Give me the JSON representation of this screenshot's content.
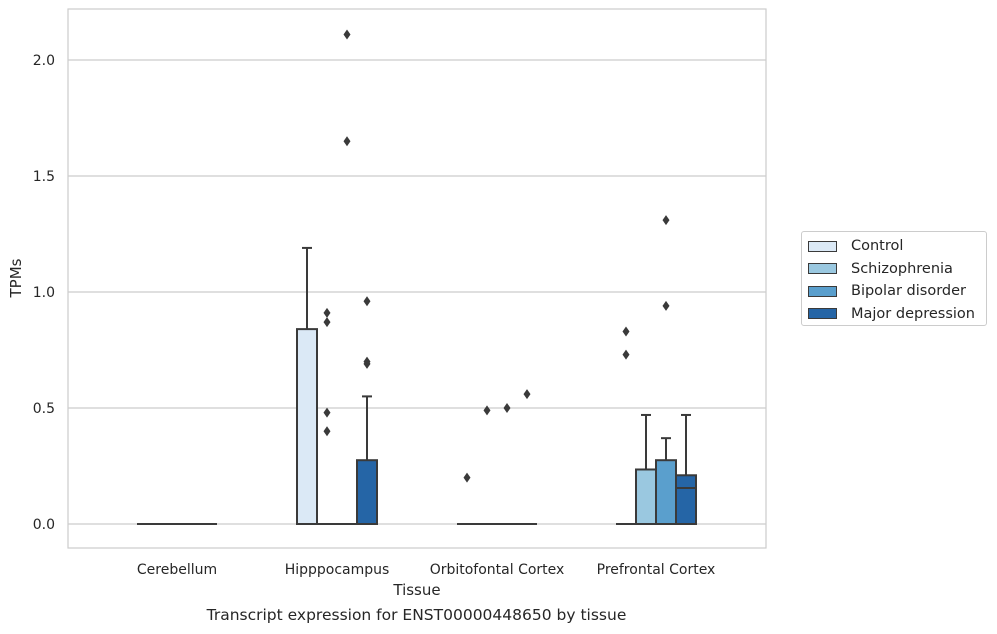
{
  "caption": "Transcript expression for ENST00000448650 by tissue",
  "chart_data": {
    "type": "box",
    "xlabel": "Tissue",
    "ylabel": "TPMs",
    "ylim": [
      -0.1,
      2.22
    ],
    "yticks": [
      "0.0",
      "0.5",
      "1.0",
      "1.5",
      "2.0"
    ],
    "grid": "horizontal",
    "legend_position": "right",
    "categories": [
      "Cerebellum",
      "Hipppocampus",
      "Orbitofontal Cortex",
      "Prefrontal Cortex"
    ],
    "series": [
      {
        "name": "Control",
        "color": "#dbe9f6",
        "boxes": [
          {
            "q1": 0,
            "median": 0,
            "q3": 0,
            "whisker_low": 0,
            "whisker_high": 0,
            "outliers": []
          },
          {
            "q1": 0,
            "median": 0,
            "q3": 0.84,
            "whisker_low": 0,
            "whisker_high": 1.19,
            "outliers": []
          },
          {
            "q1": 0,
            "median": 0,
            "q3": 0,
            "whisker_low": 0,
            "whisker_high": 0,
            "outliers": [
              0.2
            ]
          },
          {
            "q1": 0,
            "median": 0,
            "q3": 0,
            "whisker_low": 0,
            "whisker_high": 0,
            "outliers": [
              0.83,
              0.73
            ]
          }
        ]
      },
      {
        "name": "Schizophrenia",
        "color": "#9ac8e0",
        "boxes": [
          {
            "q1": 0,
            "median": 0,
            "q3": 0,
            "whisker_low": 0,
            "whisker_high": 0,
            "outliers": []
          },
          {
            "q1": 0,
            "median": 0,
            "q3": 0,
            "whisker_low": 0,
            "whisker_high": 0,
            "outliers": [
              0.91,
              0.87,
              0.48,
              0.4
            ]
          },
          {
            "q1": 0,
            "median": 0,
            "q3": 0,
            "whisker_low": 0,
            "whisker_high": 0,
            "outliers": [
              0.49
            ]
          },
          {
            "q1": 0,
            "median": 0,
            "q3": 0.235,
            "whisker_low": 0,
            "whisker_high": 0.47,
            "outliers": []
          }
        ]
      },
      {
        "name": "Bipolar disorder",
        "color": "#5a9fcd",
        "boxes": [
          {
            "q1": 0,
            "median": 0,
            "q3": 0,
            "whisker_low": 0,
            "whisker_high": 0,
            "outliers": []
          },
          {
            "q1": 0,
            "median": 0,
            "q3": 0,
            "whisker_low": 0,
            "whisker_high": 0,
            "outliers": [
              2.11,
              1.65
            ]
          },
          {
            "q1": 0,
            "median": 0,
            "q3": 0,
            "whisker_low": 0,
            "whisker_high": 0,
            "outliers": [
              0.5
            ]
          },
          {
            "q1": 0,
            "median": 0,
            "q3": 0.275,
            "whisker_low": 0,
            "whisker_high": 0.37,
            "outliers": [
              1.31,
              0.94
            ]
          }
        ]
      },
      {
        "name": "Major depression",
        "color": "#2565a6",
        "boxes": [
          {
            "q1": 0,
            "median": 0,
            "q3": 0,
            "whisker_low": 0,
            "whisker_high": 0,
            "outliers": []
          },
          {
            "q1": 0,
            "median": 0,
            "q3": 0.275,
            "whisker_low": 0,
            "whisker_high": 0.55,
            "outliers": [
              0.96,
              0.7,
              0.69
            ]
          },
          {
            "q1": 0,
            "median": 0,
            "q3": 0,
            "whisker_low": 0,
            "whisker_high": 0,
            "outliers": [
              0.56
            ]
          },
          {
            "q1": 0,
            "median": 0.155,
            "q3": 0.21,
            "whisker_low": 0,
            "whisker_high": 0.47,
            "outliers": []
          }
        ]
      }
    ]
  }
}
